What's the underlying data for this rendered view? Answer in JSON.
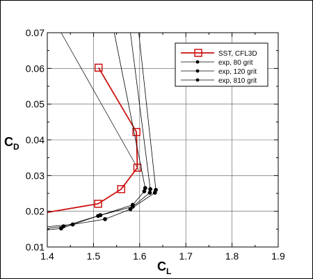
{
  "chart_data": {
    "type": "line",
    "xlabel": "C",
    "xlabel_sub": "L",
    "ylabel": "C",
    "ylabel_sub": "D",
    "xlim": [
      1.4,
      1.9
    ],
    "ylim": [
      0.01,
      0.07
    ],
    "x_ticks": [
      "1.4",
      "1.5",
      "1.6",
      "1.7",
      "1.8",
      "1.9"
    ],
    "y_ticks": [
      "0.01",
      "0.02",
      "0.03",
      "0.04",
      "0.05",
      "0.06",
      "0.07"
    ],
    "grid": true,
    "legend_position": "top-right",
    "colors": {
      "sst": "#cc1111",
      "exp": "#000000"
    },
    "series": [
      {
        "name": "SST, CFL3D",
        "marker": "square",
        "x": [
          1.4,
          1.51,
          1.56,
          1.595,
          1.593,
          1.511
        ],
        "y": [
          0.0197,
          0.0221,
          0.0262,
          0.0322,
          0.0422,
          0.0602
        ]
      },
      {
        "name": "exp, 80 grit",
        "marker": "circle",
        "x": [
          1.4,
          1.43,
          1.51,
          1.585,
          1.61,
          1.612,
          1.545
        ],
        "y": [
          0.0148,
          0.0152,
          0.0187,
          0.0218,
          0.0256,
          0.0265,
          0.07
        ]
      },
      {
        "name": "exp, 120 grit",
        "marker": "circle",
        "x": [
          1.4,
          1.435,
          1.515,
          1.585,
          1.622,
          1.623,
          1.58
        ],
        "y": [
          0.0152,
          0.0158,
          0.0189,
          0.0213,
          0.0252,
          0.0262,
          0.07
        ]
      },
      {
        "name": "exp, 810 grit",
        "marker": "circle",
        "x": [
          1.4,
          1.455,
          1.525,
          1.58,
          1.633,
          1.635,
          1.598
        ],
        "y": [
          0.0157,
          0.0163,
          0.0178,
          0.0206,
          0.0252,
          0.026,
          0.07
        ]
      }
    ],
    "extra_lines": [
      {
        "x": [
          1.43,
          1.598
        ],
        "y": [
          0.07,
          0.0315
        ]
      }
    ]
  }
}
